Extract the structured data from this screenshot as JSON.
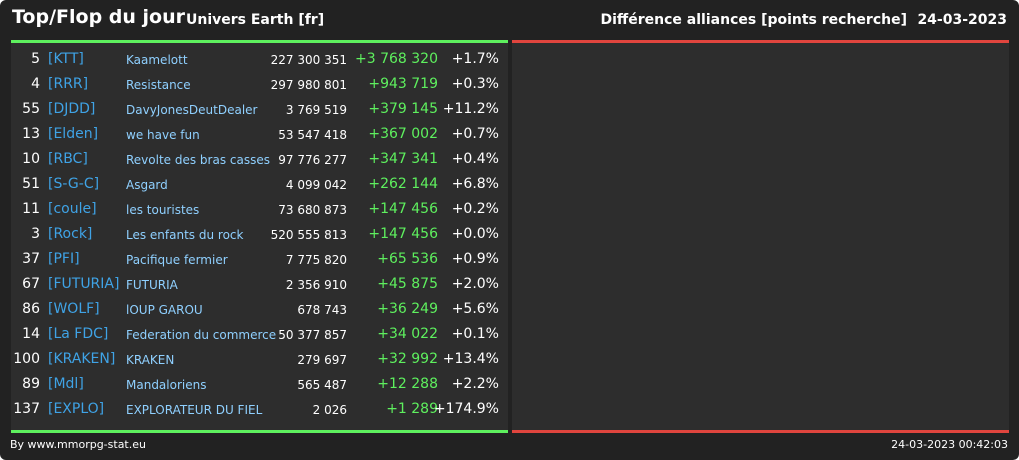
{
  "header": {
    "title": "Top/Flop du jour",
    "universe": "Univers Earth [fr]",
    "subtitle": "Différence alliances [points recherche]",
    "date": "24-03-2023"
  },
  "table": {
    "rows": [
      [
        5,
        "[KTT]",
        "Kaamelott",
        "227 300 351",
        "+3 768 320",
        "+1.7%"
      ],
      [
        4,
        "[RRR]",
        "Resistance",
        "297 980 801",
        "+943 719",
        "+0.3%"
      ],
      [
        55,
        "[DJDD]",
        "DavyJonesDeutDealer",
        "3 769 519",
        "+379 145",
        "+11.2%"
      ],
      [
        13,
        "[Elden]",
        "we have fun",
        "53 547 418",
        "+367 002",
        "+0.7%"
      ],
      [
        10,
        "[RBC]",
        "Revolte des bras casses",
        "97 776 277",
        "+347 341",
        "+0.4%"
      ],
      [
        51,
        "[S-G-C]",
        "Asgard",
        "4 099 042",
        "+262 144",
        "+6.8%"
      ],
      [
        11,
        "[coule]",
        "les touristes",
        "73 680 873",
        "+147 456",
        "+0.2%"
      ],
      [
        3,
        "[Rock]",
        "Les enfants du rock",
        "520 555 813",
        "+147 456",
        "+0.0%"
      ],
      [
        37,
        "[PFI]",
        "Pacifique fermier",
        "7 775 820",
        "+65 536",
        "+0.9%"
      ],
      [
        67,
        "[FUTURIA]",
        "FUTURIA",
        "2 356 910",
        "+45 875",
        "+2.0%"
      ],
      [
        86,
        "[WOLF]",
        "lOUP GAROU",
        "678 743",
        "+36 249",
        "+5.6%"
      ],
      [
        14,
        "[La FDC]",
        "Federation du commerce",
        "50 377 857",
        "+34 022",
        "+0.1%"
      ],
      [
        100,
        "[KRAKEN]",
        "KRAKEN",
        "279 697",
        "+32 992",
        "+13.4%"
      ],
      [
        89,
        "[Mdl]",
        "Mandaloriens",
        "565 487",
        "+12 288",
        "+2.2%"
      ],
      [
        137,
        "[EXPLO]",
        "EXPLORATEUR DU FIEL",
        "2 026",
        "+1 289",
        "+174.9%"
      ]
    ]
  },
  "footer": {
    "source": "By www.mmorpg-stat.eu",
    "timestamp": "24-03-2023 00:42:03"
  }
}
